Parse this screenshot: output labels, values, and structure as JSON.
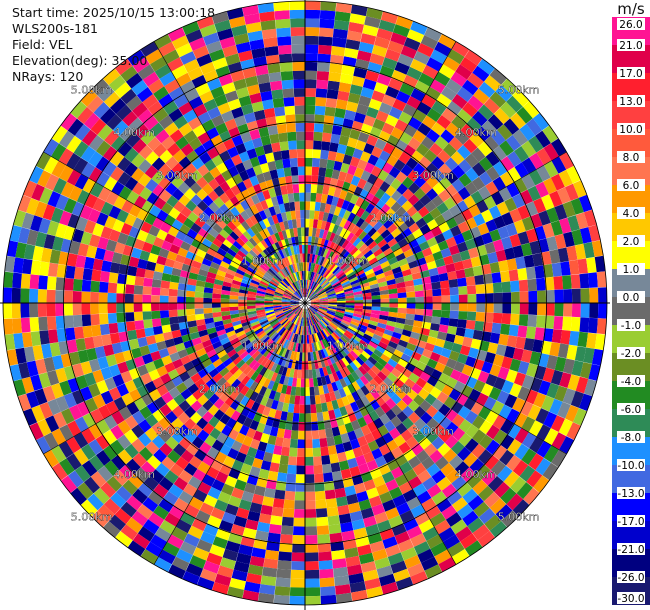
{
  "header": {
    "start_time": "Start time: 2025/10/15 13:00:18",
    "instrument": "WLS200s-181",
    "field": "Field: VEL",
    "elevation": "Elevation(deg): 35.00",
    "nrays": "NRays: 120"
  },
  "colorbar": {
    "unit": "m/s",
    "levels": [
      {
        "label": "26.0",
        "color": "#ff1493"
      },
      {
        "label": "21.0",
        "color": "#e0004a"
      },
      {
        "label": "17.0",
        "color": "#ff1f2e"
      },
      {
        "label": "13.0",
        "color": "#ff4040"
      },
      {
        "label": "10.0",
        "color": "#ff5a3c"
      },
      {
        "label": "8.0",
        "color": "#ff7550"
      },
      {
        "label": "6.0",
        "color": "#ff9900"
      },
      {
        "label": "4.0",
        "color": "#ffc800"
      },
      {
        "label": "2.0",
        "color": "#ffff00"
      },
      {
        "label": "1.0",
        "color": "#778899"
      },
      {
        "label": "0.0",
        "color": "#6b6b6b"
      },
      {
        "label": "-1.0",
        "color": "#9acd32"
      },
      {
        "label": "-2.0",
        "color": "#6b8e23"
      },
      {
        "label": "-4.0",
        "color": "#228b22"
      },
      {
        "label": "-6.0",
        "color": "#2e8b57"
      },
      {
        "label": "-8.0",
        "color": "#1e90ff"
      },
      {
        "label": "-10.0",
        "color": "#4169e1"
      },
      {
        "label": "-13.0",
        "color": "#0000ff"
      },
      {
        "label": "-17.0",
        "color": "#0000cd"
      },
      {
        "label": "-21.0",
        "color": "#000080"
      },
      {
        "label": "-26.0",
        "color": "#191970"
      },
      {
        "label": "-30.0",
        "color": ""
      }
    ]
  },
  "chart_data": {
    "type": "heatmap",
    "projection": "polar",
    "rays": 120,
    "elevation_deg": 35.0,
    "max_range_km": 5.0,
    "range_rings_km": [
      1,
      2,
      3,
      4,
      5
    ],
    "range_ring_labels": [
      "1.00km",
      "2.00km",
      "3.00km",
      "4.00km",
      "5.00km"
    ],
    "ring_label_azimuths_deg": [
      45,
      135,
      225,
      315
    ],
    "gates": 34,
    "palette": [
      "#ff1493",
      "#e0004a",
      "#ff1f2e",
      "#ff4040",
      "#ff5a3c",
      "#ff7550",
      "#ff9900",
      "#ffc800",
      "#ffff00",
      "#778899",
      "#6b6b6b",
      "#9acd32",
      "#6b8e23",
      "#228b22",
      "#2e8b57",
      "#1e90ff",
      "#4169e1",
      "#0000ff",
      "#0000cd",
      "#000080",
      "#191970"
    ],
    "pattern": "noisy velocity field, values span -30 to 26 m/s"
  }
}
